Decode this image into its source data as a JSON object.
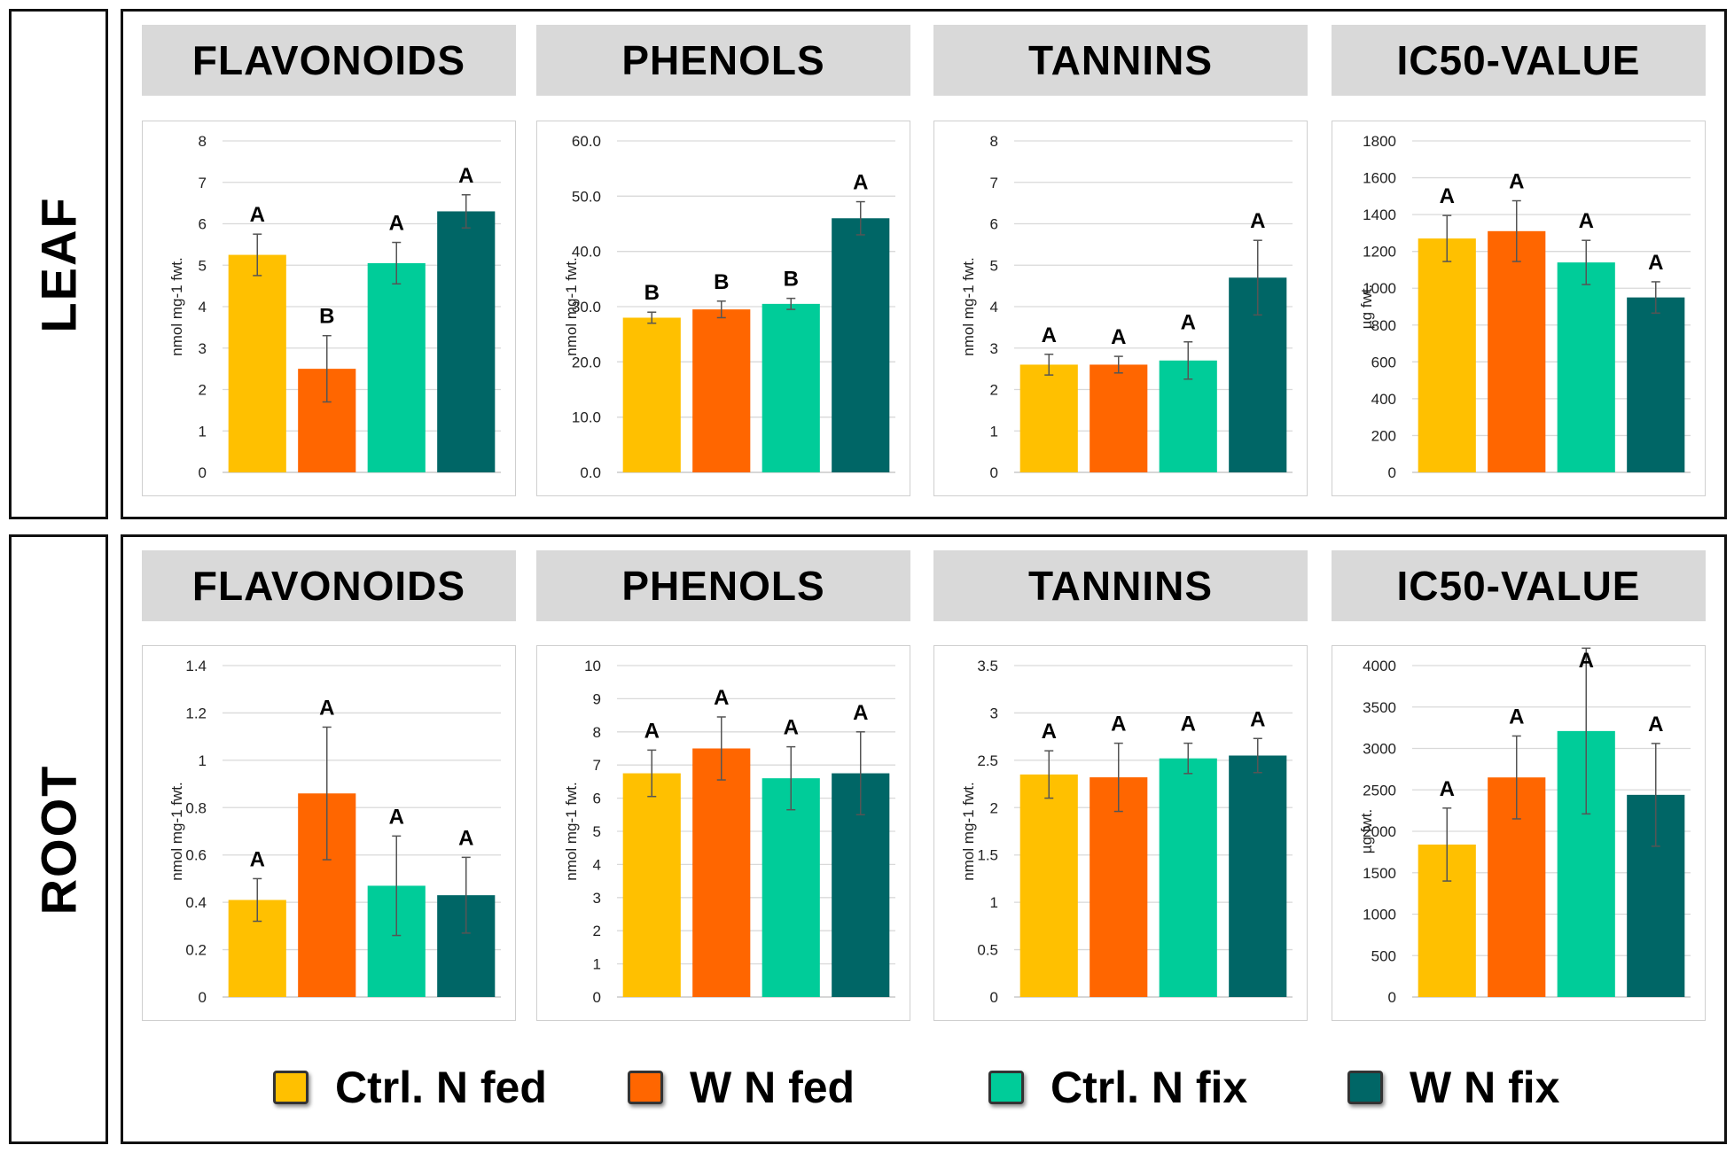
{
  "rows": [
    {
      "label": "LEAF",
      "charts": [
        {
          "title": "FLAVONOIDS",
          "ylabel": "nmol mg-1 fwt.",
          "ticks": [
            "0",
            "1",
            "2",
            "3",
            "4",
            "5",
            "6",
            "7",
            "8"
          ],
          "ymin": 0,
          "ymax": 8,
          "values": [
            5.25,
            2.5,
            5.05,
            6.3
          ],
          "errors": [
            0.5,
            0.8,
            0.5,
            0.4
          ],
          "letters": [
            "A",
            "B",
            "A",
            "A"
          ]
        },
        {
          "title": "PHENOLS",
          "ylabel": "nmol mg-1 fwt.",
          "ticks": [
            "0.0",
            "10.0",
            "20.0",
            "30.0",
            "40.0",
            "50.0",
            "60.0"
          ],
          "ymin": 0,
          "ymax": 60,
          "values": [
            28.0,
            29.5,
            30.5,
            46.0
          ],
          "errors": [
            1.0,
            1.5,
            1.0,
            3.0
          ],
          "letters": [
            "B",
            "B",
            "B",
            "A"
          ]
        },
        {
          "title": "TANNINS",
          "ylabel": "nmol mg-1 fwt.",
          "ticks": [
            "0",
            "1",
            "2",
            "3",
            "4",
            "5",
            "6",
            "7",
            "8"
          ],
          "ymin": 0,
          "ymax": 8,
          "values": [
            2.6,
            2.6,
            2.7,
            4.7
          ],
          "errors": [
            0.25,
            0.2,
            0.45,
            0.9
          ],
          "letters": [
            "A",
            "A",
            "A",
            "A"
          ]
        },
        {
          "title": "IC50-VALUE",
          "ylabel": "µg fwt.",
          "ticks": [
            "0",
            "200",
            "400",
            "600",
            "800",
            "1000",
            "1200",
            "1400",
            "1600",
            "1800"
          ],
          "ymin": 0,
          "ymax": 1800,
          "values": [
            1270,
            1310,
            1140,
            950
          ],
          "errors": [
            125,
            165,
            120,
            85
          ],
          "letters": [
            "A",
            "A",
            "A",
            "A"
          ]
        }
      ]
    },
    {
      "label": "ROOT",
      "charts": [
        {
          "title": "FLAVONOIDS",
          "ylabel": "nmol mg-1 fwt.",
          "ticks": [
            "0",
            "0.2",
            "0.4",
            "0.6",
            "0.8",
            "1",
            "1.2",
            "1.4"
          ],
          "ymin": 0,
          "ymax": 1.4,
          "values": [
            0.41,
            0.86,
            0.47,
            0.43
          ],
          "errors": [
            0.09,
            0.28,
            0.21,
            0.16
          ],
          "letters": [
            "A",
            "A",
            "A",
            "A"
          ]
        },
        {
          "title": "PHENOLS",
          "ylabel": "nmol mg-1 fwt.",
          "ticks": [
            "0",
            "1",
            "2",
            "3",
            "4",
            "5",
            "6",
            "7",
            "8",
            "9",
            "10"
          ],
          "ymin": 0,
          "ymax": 10,
          "values": [
            6.75,
            7.5,
            6.6,
            6.75
          ],
          "errors": [
            0.7,
            0.95,
            0.95,
            1.25
          ],
          "letters": [
            "A",
            "A",
            "A",
            "A"
          ]
        },
        {
          "title": "TANNINS",
          "ylabel": "nmol mg-1 fwt.",
          "ticks": [
            "0",
            "0.5",
            "1",
            "1.5",
            "2",
            "2.5",
            "3",
            "3.5"
          ],
          "ymin": 0,
          "ymax": 3.5,
          "values": [
            2.35,
            2.32,
            2.52,
            2.55
          ],
          "errors": [
            0.25,
            0.36,
            0.16,
            0.18
          ],
          "letters": [
            "A",
            "A",
            "A",
            "A"
          ]
        },
        {
          "title": "IC50-VALUE",
          "ylabel": "µg fwt.",
          "ticks": [
            "0",
            "500",
            "1000",
            "1500",
            "2000",
            "2500",
            "3000",
            "3500",
            "4000"
          ],
          "ymin": 0,
          "ymax": 4000,
          "values": [
            1840,
            2650,
            3210,
            2440
          ],
          "errors": [
            440,
            500,
            1000,
            620
          ],
          "letters": [
            "A",
            "A",
            "A",
            "A"
          ]
        }
      ]
    }
  ],
  "legend": [
    {
      "label": "Ctrl. N fed",
      "color": "#FFC000"
    },
    {
      "label": "W N fed",
      "color": "#FF6600"
    },
    {
      "label": "Ctrl. N fix",
      "color": "#00CC99"
    },
    {
      "label": "W N fix",
      "color": "#006666"
    }
  ],
  "chart_data": [
    {
      "type": "bar",
      "group": "LEAF",
      "title": "FLAVONOIDS",
      "ylabel": "nmol mg-1 fwt.",
      "ylim": [
        0,
        8
      ],
      "categories": [
        "Ctrl. N fed",
        "W N fed",
        "Ctrl. N fix",
        "W N fix"
      ],
      "values": [
        5.25,
        2.5,
        5.05,
        6.3
      ],
      "errors": [
        0.5,
        0.8,
        0.5,
        0.4
      ],
      "annotations": [
        "A",
        "B",
        "A",
        "A"
      ]
    },
    {
      "type": "bar",
      "group": "LEAF",
      "title": "PHENOLS",
      "ylabel": "nmol mg-1 fwt.",
      "ylim": [
        0,
        60
      ],
      "categories": [
        "Ctrl. N fed",
        "W N fed",
        "Ctrl. N fix",
        "W N fix"
      ],
      "values": [
        28.0,
        29.5,
        30.5,
        46.0
      ],
      "errors": [
        1.0,
        1.5,
        1.0,
        3.0
      ],
      "annotations": [
        "B",
        "B",
        "B",
        "A"
      ]
    },
    {
      "type": "bar",
      "group": "LEAF",
      "title": "TANNINS",
      "ylabel": "nmol mg-1 fwt.",
      "ylim": [
        0,
        8
      ],
      "categories": [
        "Ctrl. N fed",
        "W N fed",
        "Ctrl. N fix",
        "W N fix"
      ],
      "values": [
        2.6,
        2.6,
        2.7,
        4.7
      ],
      "errors": [
        0.25,
        0.2,
        0.45,
        0.9
      ],
      "annotations": [
        "A",
        "A",
        "A",
        "A"
      ]
    },
    {
      "type": "bar",
      "group": "LEAF",
      "title": "IC50-VALUE",
      "ylabel": "µg fwt.",
      "ylim": [
        0,
        1800
      ],
      "categories": [
        "Ctrl. N fed",
        "W N fed",
        "Ctrl. N fix",
        "W N fix"
      ],
      "values": [
        1270,
        1310,
        1140,
        950
      ],
      "errors": [
        125,
        165,
        120,
        85
      ],
      "annotations": [
        "A",
        "A",
        "A",
        "A"
      ]
    },
    {
      "type": "bar",
      "group": "ROOT",
      "title": "FLAVONOIDS",
      "ylabel": "nmol mg-1 fwt.",
      "ylim": [
        0,
        1.4
      ],
      "categories": [
        "Ctrl. N fed",
        "W N fed",
        "Ctrl. N fix",
        "W N fix"
      ],
      "values": [
        0.41,
        0.86,
        0.47,
        0.43
      ],
      "errors": [
        0.09,
        0.28,
        0.21,
        0.16
      ],
      "annotations": [
        "A",
        "A",
        "A",
        "A"
      ]
    },
    {
      "type": "bar",
      "group": "ROOT",
      "title": "PHENOLS",
      "ylabel": "nmol mg-1 fwt.",
      "ylim": [
        0,
        10
      ],
      "categories": [
        "Ctrl. N fed",
        "W N fed",
        "Ctrl. N fix",
        "W N fix"
      ],
      "values": [
        6.75,
        7.5,
        6.6,
        6.75
      ],
      "errors": [
        0.7,
        0.95,
        0.95,
        1.25
      ],
      "annotations": [
        "A",
        "A",
        "A",
        "A"
      ]
    },
    {
      "type": "bar",
      "group": "ROOT",
      "title": "TANNINS",
      "ylabel": "nmol mg-1 fwt.",
      "ylim": [
        0,
        3.5
      ],
      "categories": [
        "Ctrl. N fed",
        "W N fed",
        "Ctrl. N fix",
        "W N fix"
      ],
      "values": [
        2.35,
        2.32,
        2.52,
        2.55
      ],
      "errors": [
        0.25,
        0.36,
        0.16,
        0.18
      ],
      "annotations": [
        "A",
        "A",
        "A",
        "A"
      ]
    },
    {
      "type": "bar",
      "group": "ROOT",
      "title": "IC50-VALUE",
      "ylabel": "µg fwt.",
      "ylim": [
        0,
        4000
      ],
      "categories": [
        "Ctrl. N fed",
        "W N fed",
        "Ctrl. N fix",
        "W N fix"
      ],
      "values": [
        1840,
        2650,
        3210,
        2440
      ],
      "errors": [
        440,
        500,
        1000,
        620
      ],
      "annotations": [
        "A",
        "A",
        "A",
        "A"
      ]
    }
  ]
}
